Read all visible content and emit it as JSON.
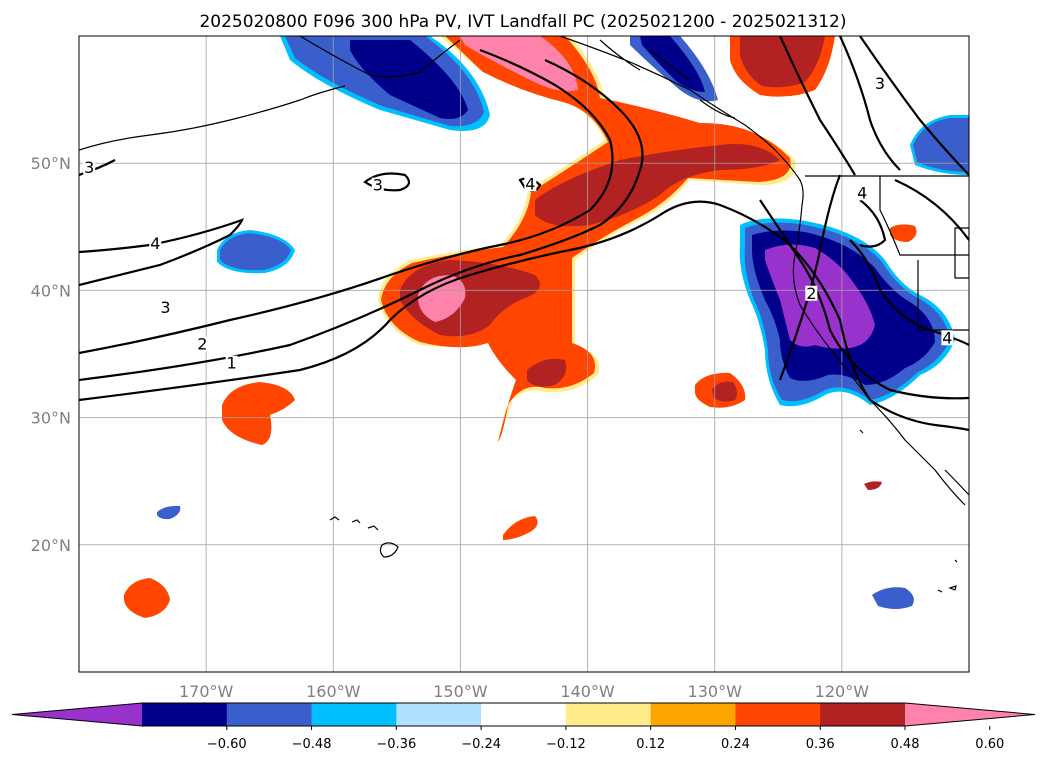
{
  "title": "2025020800 F096 300 hPa PV, IVT Landfall PC (2025021200 - 2025021312)",
  "map": {
    "lon_range": [
      -180,
      -110
    ],
    "lat_range": [
      10,
      60
    ],
    "lon_ticks": [
      {
        "lon": -170,
        "label": "170°W"
      },
      {
        "lon": -160,
        "label": "160°W"
      },
      {
        "lon": -150,
        "label": "150°W"
      },
      {
        "lon": -140,
        "label": "140°W"
      },
      {
        "lon": -130,
        "label": "130°W"
      },
      {
        "lon": -120,
        "label": "120°W"
      }
    ],
    "lat_ticks": [
      {
        "lat": 50,
        "label": "50°N"
      },
      {
        "lat": 40,
        "label": "40°N"
      },
      {
        "lat": 30,
        "label": "30°N"
      },
      {
        "lat": 20,
        "label": "20°N"
      }
    ],
    "grid": true
  },
  "colorbar": {
    "extend": "both",
    "colors": [
      "#9932CC",
      "#00008B",
      "#3A5FCD",
      "#00BFFF",
      "#B0E2FF",
      "#FFFFFF",
      "#FFEC8B",
      "#FFA500",
      "#FF4500",
      "#B22222",
      "#FF82AB"
    ],
    "ticks": [
      "−0.60",
      "−0.48",
      "−0.36",
      "−0.24",
      "−0.12",
      "0.12",
      "0.24",
      "0.36",
      "0.48",
      "0.60"
    ]
  },
  "contour_labels": [
    {
      "text": "3",
      "lon": -179.2,
      "lat": 49.4
    },
    {
      "text": "4",
      "lon": -174.0,
      "lat": 43.4
    },
    {
      "text": "3",
      "lon": -173.2,
      "lat": 38.4
    },
    {
      "text": "2",
      "lon": -170.3,
      "lat": 35.5
    },
    {
      "text": "1",
      "lon": -168.0,
      "lat": 34.0
    },
    {
      "text": "3",
      "lon": -156.5,
      "lat": 48.0
    },
    {
      "text": "4",
      "lon": -144.5,
      "lat": 48.1
    },
    {
      "text": "3",
      "lon": -117.0,
      "lat": 56.0
    },
    {
      "text": "4",
      "lon": -118.4,
      "lat": 47.4
    },
    {
      "text": "2",
      "lon": -122.4,
      "lat": 39.5
    },
    {
      "text": "4",
      "lon": -111.7,
      "lat": 36.0
    }
  ]
}
